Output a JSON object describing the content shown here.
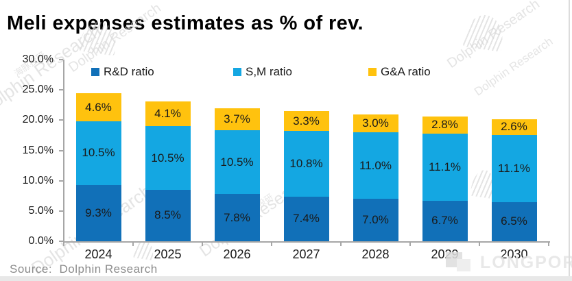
{
  "title": "Meli expenses estimates as % of rev.",
  "source": "Source:  Dolphin Research",
  "watermarks": {
    "brand": "Dolphin Research",
    "brand_cn": "海豚投研",
    "partner": "LONGPORT"
  },
  "chart_data": {
    "type": "bar",
    "stacked": true,
    "title": "Meli expenses estimates as % of rev.",
    "categories": [
      "2024",
      "2025",
      "2026",
      "2027",
      "2028",
      "2029",
      "2030"
    ],
    "series": [
      {
        "name": "R&D ratio",
        "color": "#1170B8",
        "values": [
          9.3,
          8.5,
          7.8,
          7.4,
          7.0,
          6.7,
          6.5
        ]
      },
      {
        "name": "S,M ratio",
        "color": "#14A7E2",
        "values": [
          10.5,
          10.5,
          10.5,
          10.8,
          11.0,
          11.1,
          11.1
        ]
      },
      {
        "name": "G&A ratio",
        "color": "#FFC20E",
        "values": [
          4.6,
          4.1,
          3.7,
          3.3,
          3.0,
          2.8,
          2.6
        ]
      }
    ],
    "totals": [
      24.4,
      23.1,
      22.0,
      21.5,
      21.0,
      20.6,
      20.2
    ],
    "xlabel": "",
    "ylabel": "",
    "ylim": [
      0,
      30
    ],
    "y_ticks": [
      0,
      5,
      10,
      15,
      20,
      25,
      30
    ],
    "y_tick_labels": [
      "0.0%",
      "5.0%",
      "10.0%",
      "15.0%",
      "20.0%",
      "25.0%",
      "30.0%"
    ],
    "data_label_format": "one-decimal-percent",
    "grid": false,
    "legend_position": "top-inside"
  }
}
